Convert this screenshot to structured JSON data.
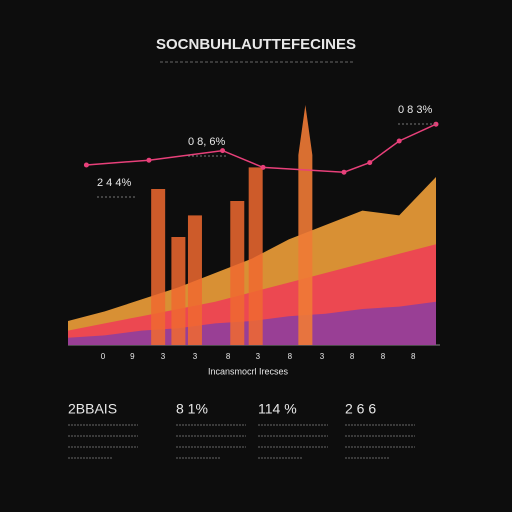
{
  "chart_data": {
    "type": "area",
    "title": "SOCNBUHLAUTTEFECINES",
    "x_label": "Incansmocrl Irecses",
    "xlim": [
      0,
      10
    ],
    "ylim": [
      0,
      100
    ],
    "x": [
      0,
      1,
      2,
      3,
      4,
      5,
      6,
      7,
      8,
      9,
      10
    ],
    "xticks": [
      {
        "value": 0.95,
        "label": "0"
      },
      {
        "value": 1.75,
        "label": "9"
      },
      {
        "value": 2.58,
        "label": "3"
      },
      {
        "value": 3.45,
        "label": "3"
      },
      {
        "value": 4.35,
        "label": "8"
      },
      {
        "value": 5.16,
        "label": "3"
      },
      {
        "value": 6.03,
        "label": "8"
      },
      {
        "value": 6.9,
        "label": "3"
      },
      {
        "value": 7.72,
        "label": "8"
      },
      {
        "value": 8.56,
        "label": "8"
      },
      {
        "value": 9.38,
        "label": "8"
      }
    ],
    "series": [
      {
        "color": "#f5a33a",
        "values": [
          10,
          14,
          19,
          24,
          30,
          36,
          44,
          50,
          56,
          54,
          70
        ]
      },
      {
        "color": "#ee3d55",
        "values": [
          6,
          9,
          12,
          15,
          18,
          22,
          26,
          30,
          34,
          38,
          42
        ]
      },
      {
        "color": "#8d3d9e",
        "values": [
          3,
          4,
          6,
          7,
          9,
          10,
          12,
          13,
          15,
          16,
          18
        ]
      }
    ],
    "bars": {
      "color": "#f06a30",
      "x": [
        2.45,
        3.0,
        3.45,
        4.6,
        5.1,
        6.45
      ],
      "values": [
        65,
        45,
        54,
        60,
        74,
        100
      ]
    },
    "line": {
      "color": "#e8407a",
      "x": [
        0.5,
        2.2,
        4.2,
        5.3,
        7.5,
        8.2,
        9.0,
        10.0
      ],
      "values": [
        75,
        77,
        81,
        74,
        72,
        76,
        85,
        92
      ]
    },
    "annotations": [
      "2 4 4%",
      "0 8, 6%",
      "0 8 3%"
    ],
    "stats": [
      "2BBAIS",
      "8 1%",
      "114 %",
      "2 6 6"
    ]
  }
}
